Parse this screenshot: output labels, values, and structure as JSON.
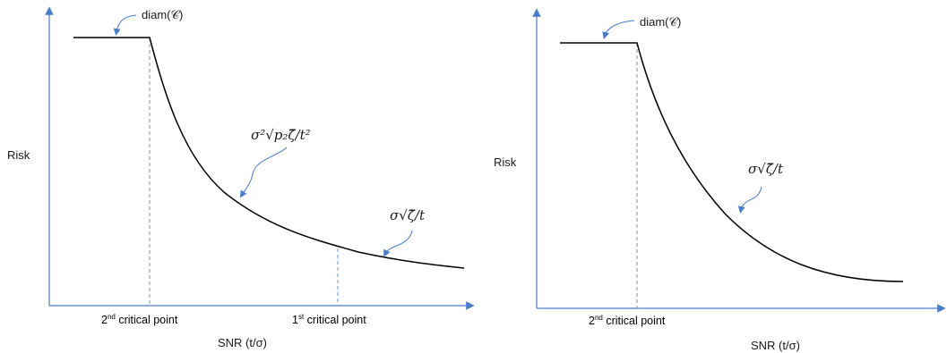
{
  "panels": {
    "left": {
      "ylabel": "Risk",
      "xlabel": "SNR (t/σ)",
      "top_annotation": "diam(𝒞)",
      "curve_annotation_1": "σ²√p₂ζ̄/t²",
      "curve_annotation_2": "σ√ζ̄/t",
      "critical_points": [
        {
          "ordinal": "2",
          "suffix": "nd",
          "label": "critical point"
        },
        {
          "ordinal": "1",
          "suffix": "st",
          "label": "critical point"
        }
      ]
    },
    "right": {
      "ylabel": "Risk",
      "xlabel": "SNR (t/σ)",
      "top_annotation": "diam(𝒞)",
      "curve_annotation": "σ√ζ̄/t",
      "critical_points": [
        {
          "ordinal": "2",
          "suffix": "nd",
          "label": "critical point"
        }
      ]
    }
  },
  "colors": {
    "axis": "#4a7cc7",
    "curve": "#000000",
    "guide": "#6a9bd8",
    "arrow": "#4a7cc7"
  }
}
